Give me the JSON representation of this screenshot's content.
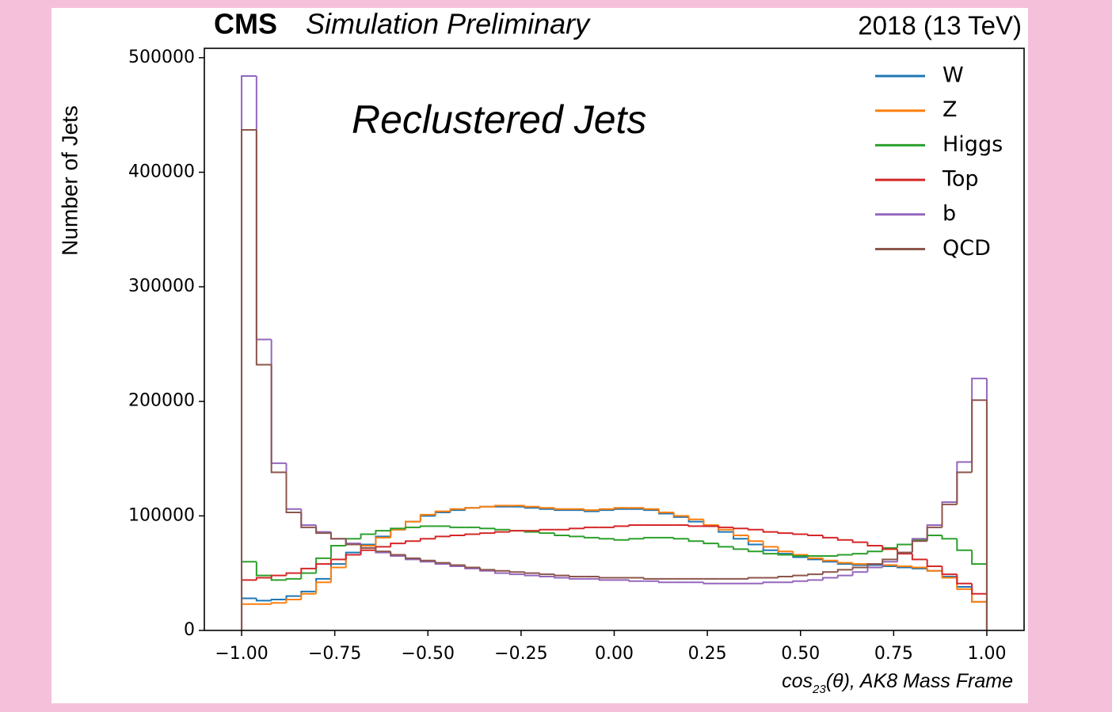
{
  "chart_data": {
    "type": "histogram",
    "experiment": "CMS",
    "label": "Simulation Preliminary",
    "lumi": "2018 (13 TeV)",
    "annotation": "Reclustered Jets",
    "ylabel": "Number of Jets",
    "xlabel": {
      "base": "cos",
      "sub": "23",
      "rest": "(θ), AK8 Mass Frame"
    },
    "bins": [
      -1,
      -0.96,
      -0.92,
      -0.88,
      -0.84,
      -0.8,
      -0.76,
      -0.72,
      -0.68,
      -0.64,
      -0.6,
      -0.56,
      -0.52,
      -0.48,
      -0.44,
      -0.4,
      -0.36,
      -0.32,
      -0.28,
      -0.24,
      -0.2,
      -0.16,
      -0.12,
      -0.08,
      -0.04,
      0,
      0.04,
      0.08,
      0.12,
      0.16,
      0.2,
      0.24,
      0.28,
      0.32,
      0.36,
      0.4,
      0.44,
      0.48,
      0.52,
      0.56,
      0.6,
      0.64,
      0.68,
      0.72,
      0.76,
      0.8,
      0.84,
      0.88,
      0.92,
      0.96,
      1
    ],
    "series": [
      {
        "name": "W",
        "color": "#1f77b4",
        "values": [
          28000,
          26000,
          27000,
          30000,
          34000,
          45000,
          58000,
          68000,
          75000,
          82000,
          88000,
          95000,
          100000,
          103000,
          105000,
          107000,
          108000,
          108000,
          108000,
          107000,
          106000,
          105000,
          105000,
          104000,
          105000,
          106000,
          106000,
          105000,
          102000,
          99000,
          95000,
          91000,
          86000,
          80000,
          75000,
          70000,
          67000,
          64000,
          62000,
          60000,
          58000,
          57000,
          57000,
          56000,
          55000,
          54000,
          52000,
          47000,
          38000,
          25000
        ]
      },
      {
        "name": "Z",
        "color": "#ff7f0e",
        "values": [
          23000,
          23000,
          24000,
          27000,
          32000,
          42000,
          55000,
          66000,
          74000,
          81000,
          88000,
          95000,
          101000,
          104000,
          106000,
          107000,
          108000,
          109000,
          109000,
          108000,
          107000,
          106000,
          106000,
          105000,
          106000,
          107000,
          107000,
          106000,
          103000,
          100000,
          97000,
          92000,
          88000,
          83000,
          78000,
          73000,
          69000,
          66000,
          63000,
          61000,
          59000,
          58000,
          58000,
          57000,
          56000,
          55000,
          52000,
          46000,
          36000,
          25000
        ]
      },
      {
        "name": "Higgs",
        "color": "#2ca02c",
        "values": [
          60000,
          48000,
          44000,
          45000,
          50000,
          63000,
          74000,
          80000,
          84000,
          87000,
          89000,
          90000,
          91000,
          91000,
          90000,
          90000,
          89000,
          88000,
          87000,
          86000,
          85000,
          83000,
          82000,
          81000,
          80000,
          79000,
          80000,
          81000,
          81000,
          80000,
          78000,
          76000,
          73000,
          71000,
          69000,
          67000,
          66000,
          65000,
          65000,
          65000,
          66000,
          67000,
          69000,
          72000,
          75000,
          79000,
          83000,
          80000,
          70000,
          58000
        ]
      },
      {
        "name": "Top",
        "color": "#d62728",
        "values": [
          44000,
          46000,
          48000,
          50000,
          54000,
          58000,
          62000,
          66000,
          70000,
          73000,
          76000,
          78000,
          80000,
          82000,
          83000,
          84000,
          85000,
          86000,
          87000,
          87000,
          88000,
          88000,
          89000,
          90000,
          90000,
          91000,
          92000,
          92000,
          92000,
          92000,
          91000,
          91000,
          90000,
          89000,
          88000,
          86000,
          85000,
          84000,
          83000,
          81000,
          79000,
          77000,
          74000,
          71000,
          67000,
          62000,
          56000,
          49000,
          41000,
          32000
        ]
      },
      {
        "name": "b",
        "color": "#9467bd",
        "values": [
          484000,
          254000,
          146000,
          106000,
          92000,
          86000,
          80000,
          76000,
          72000,
          68000,
          65000,
          62000,
          60000,
          58000,
          56000,
          54000,
          52000,
          50000,
          49000,
          48000,
          47000,
          46000,
          45000,
          45000,
          44000,
          44000,
          43000,
          43000,
          42000,
          42000,
          42000,
          41000,
          41000,
          41000,
          41000,
          42000,
          42000,
          43000,
          44000,
          46000,
          48000,
          51000,
          55000,
          60000,
          68000,
          80000,
          92000,
          112000,
          147000,
          220000
        ]
      },
      {
        "name": "QCD",
        "color": "#8c564b",
        "values": [
          437000,
          232000,
          138000,
          103000,
          90000,
          85000,
          80000,
          75000,
          72000,
          69000,
          66000,
          63000,
          61000,
          59000,
          57000,
          55000,
          53000,
          52000,
          51000,
          50000,
          49000,
          48000,
          47000,
          47000,
          46000,
          46000,
          46000,
          45000,
          45000,
          45000,
          45000,
          45000,
          45000,
          45000,
          46000,
          46000,
          47000,
          48000,
          49000,
          51000,
          53000,
          55000,
          58000,
          62000,
          68000,
          78000,
          90000,
          110000,
          138000,
          201000
        ]
      }
    ],
    "xlim": [
      -1.1,
      1.1
    ],
    "xticks": [
      {
        "value": -1,
        "label": "−1.00"
      },
      {
        "value": -0.75,
        "label": "−0.75"
      },
      {
        "value": -0.5,
        "label": "−0.50"
      },
      {
        "value": -0.25,
        "label": "−0.25"
      },
      {
        "value": 0,
        "label": "0.00"
      },
      {
        "value": 0.25,
        "label": "0.25"
      },
      {
        "value": 0.5,
        "label": "0.50"
      },
      {
        "value": 0.75,
        "label": "0.75"
      },
      {
        "value": 1,
        "label": "1.00"
      }
    ],
    "ylim": [
      0,
      508200
    ],
    "yticks": [
      0,
      100000,
      200000,
      300000,
      400000,
      500000
    ],
    "legend": "upper right"
  }
}
